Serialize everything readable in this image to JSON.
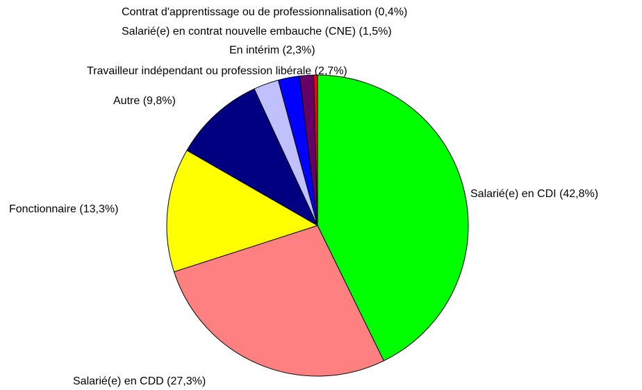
{
  "chart_data": {
    "type": "pie",
    "categories": [
      "Salarié(e) en CDI",
      "Salarié(e) en CDD",
      "Fonctionnaire",
      "Autre",
      "Travailleur indépendant ou profession libérale",
      "En intérim",
      "Salarié(e) en contrat nouvelle embauche (CNE)",
      "Contrat d'apprentissage ou de professionnalisation"
    ],
    "values": [
      42.8,
      27.3,
      13.3,
      9.8,
      2.7,
      2.3,
      1.5,
      0.4
    ],
    "value_labels": [
      "(42,8%)",
      "(27,3%)",
      "(13,3%)",
      "(9,8%)",
      "(2,7%)",
      "(2,3%)",
      "(1,5%)",
      "(0,4%)"
    ],
    "colors": [
      "#00ff00",
      "#ff8080",
      "#ffff00",
      "#000080",
      "#c0c0ff",
      "#0000ff",
      "#660066",
      "#ff0000"
    ]
  }
}
